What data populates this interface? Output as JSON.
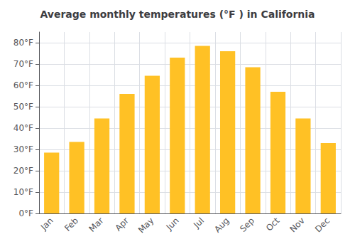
{
  "chart_data": {
    "type": "bar",
    "title": "Average monthly temperatures (°F ) in California",
    "categories": [
      "Jan",
      "Feb",
      "Mar",
      "Apr",
      "May",
      "Jun",
      "Jul",
      "Aug",
      "Sep",
      "Oct",
      "Nov",
      "Dec"
    ],
    "values": [
      28.5,
      33.5,
      44.5,
      56.0,
      64.5,
      73.0,
      78.5,
      76.0,
      68.5,
      57.0,
      44.5,
      33.0
    ],
    "color": "#FFC125",
    "ylim": [
      0,
      85
    ],
    "yticks": [
      {
        "value": 0,
        "label": "0°F"
      },
      {
        "value": 10,
        "label": "10°F"
      },
      {
        "value": 20,
        "label": "20°F"
      },
      {
        "value": 30,
        "label": "30°F"
      },
      {
        "value": 40,
        "label": "40°F"
      },
      {
        "value": 50,
        "label": "50°F"
      },
      {
        "value": 60,
        "label": "60°F"
      },
      {
        "value": 70,
        "label": "70°F"
      },
      {
        "value": 80,
        "label": "80°F"
      }
    ],
    "grid": true
  }
}
